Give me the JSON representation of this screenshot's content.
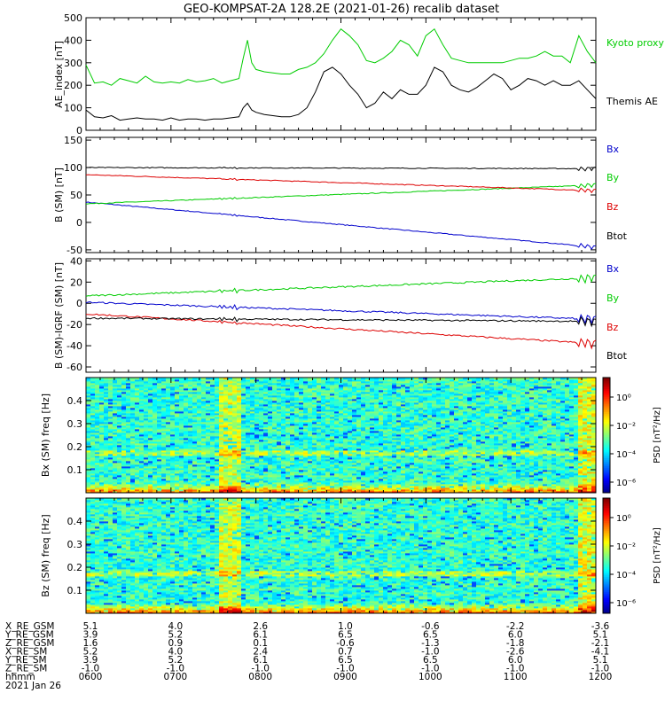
{
  "title": "GEO-KOMPSAT-2A 128.2E (2021-01-26) recalib dataset",
  "colors": {
    "black": "#000000",
    "green": "#00dd00",
    "red": "#dd0000",
    "blue": "#0000cc"
  },
  "chart_data": [
    {
      "type": "line",
      "ylabel": "AE_index [nT]",
      "ylim": [
        0,
        500
      ],
      "yticks": [
        "0",
        "100",
        "200",
        "300",
        "400",
        "500"
      ],
      "x_hours": [
        6,
        6.1,
        6.2,
        6.3,
        6.4,
        6.5,
        6.6,
        6.7,
        6.8,
        6.9,
        7,
        7.1,
        7.2,
        7.3,
        7.4,
        7.5,
        7.6,
        7.7,
        7.8,
        7.85,
        7.9,
        7.95,
        8,
        8.1,
        8.2,
        8.3,
        8.4,
        8.5,
        8.6,
        8.7,
        8.8,
        8.9,
        9,
        9.1,
        9.2,
        9.3,
        9.4,
        9.5,
        9.6,
        9.7,
        9.8,
        9.9,
        10,
        10.1,
        10.2,
        10.3,
        10.4,
        10.5,
        10.6,
        10.7,
        10.8,
        10.9,
        11,
        11.1,
        11.2,
        11.3,
        11.4,
        11.5,
        11.6,
        11.7,
        11.8,
        11.9,
        12
      ],
      "series": [
        {
          "name": "Kyoto proxy AE",
          "color": "#00cc00",
          "values": [
            290,
            210,
            215,
            200,
            230,
            220,
            210,
            240,
            215,
            210,
            215,
            210,
            225,
            215,
            220,
            230,
            210,
            220,
            230,
            320,
            400,
            300,
            270,
            260,
            255,
            250,
            250,
            270,
            280,
            300,
            340,
            400,
            450,
            420,
            380,
            310,
            300,
            320,
            350,
            400,
            380,
            330,
            420,
            450,
            380,
            320,
            310,
            300,
            300,
            300,
            300,
            300,
            310,
            320,
            320,
            330,
            350,
            330,
            330,
            300,
            420,
            350,
            300
          ]
        },
        {
          "name": "Themis AE",
          "color": "#000000",
          "values": [
            90,
            60,
            55,
            65,
            45,
            50,
            55,
            50,
            50,
            45,
            55,
            45,
            50,
            50,
            45,
            50,
            50,
            55,
            60,
            100,
            120,
            90,
            80,
            70,
            65,
            60,
            60,
            70,
            100,
            170,
            260,
            280,
            250,
            200,
            160,
            100,
            120,
            170,
            140,
            180,
            160,
            160,
            200,
            280,
            260,
            200,
            180,
            170,
            190,
            220,
            250,
            230,
            180,
            200,
            230,
            220,
            200,
            220,
            200,
            200,
            220,
            180,
            140
          ]
        }
      ]
    },
    {
      "type": "line",
      "ylabel": "B (SM) [nT]",
      "ylim": [
        -55,
        155
      ],
      "yticks": [
        "-50",
        "0",
        "50",
        "100",
        "150"
      ],
      "series": [
        {
          "name": "Bx",
          "color": "#0000cc",
          "start": 37,
          "end": -45
        },
        {
          "name": "By",
          "color": "#00cc00",
          "start": 34,
          "end": 68
        },
        {
          "name": "Bz",
          "color": "#dd0000",
          "start": 87,
          "end": 58
        },
        {
          "name": "Btot",
          "color": "#000000",
          "start": 100,
          "end": 98
        }
      ]
    },
    {
      "type": "line",
      "ylabel": "B (SM)-IGRF (SM) [nT]",
      "ylim": [
        -65,
        42
      ],
      "yticks": [
        "-60",
        "-40",
        "-20",
        "0",
        "20",
        "40"
      ],
      "series": [
        {
          "name": "Bx",
          "color": "#0000cc",
          "start": 1,
          "end": -15
        },
        {
          "name": "By",
          "color": "#00cc00",
          "start": 7,
          "end": 24
        },
        {
          "name": "Bz",
          "color": "#dd0000",
          "start": -10,
          "end": -38
        },
        {
          "name": "Btot",
          "color": "#000000",
          "start": -14,
          "end": -17
        }
      ]
    },
    {
      "type": "heatmap",
      "ylabel": "Bx (SM) freq [Hz]",
      "ylim": [
        0,
        0.5
      ],
      "yticks": [
        "0.1",
        "0.2",
        "0.3",
        "0.4"
      ],
      "colorbar": {
        "label": "PSD [nT²/Hz]",
        "ticks": [
          "10⁰",
          "10⁻²",
          "10⁻⁴",
          "10⁻⁶"
        ]
      }
    },
    {
      "type": "heatmap",
      "ylabel": "Bz (SM) freq [Hz]",
      "ylim": [
        0,
        0.5
      ],
      "yticks": [
        "0.1",
        "0.2",
        "0.3",
        "0.4"
      ],
      "colorbar": {
        "label": "PSD [nT²/Hz]",
        "ticks": [
          "10⁰",
          "10⁻²",
          "10⁻⁴",
          "10⁻⁶"
        ]
      }
    }
  ],
  "legend": {
    "ae": [
      "Kyoto proxy AE",
      "Themis AE"
    ],
    "b": [
      "Bx",
      "By",
      "Bz",
      "Btot"
    ]
  },
  "ephemeris": {
    "labels": [
      "X_RE_GSM",
      "Y_RE_GSM",
      "Z_RE_GSM",
      "X_RE_SM",
      "Y_RE_SM",
      "Z_RE_SM",
      "hhmm"
    ],
    "columns": [
      [
        "5.1",
        "3.9",
        "1.6",
        "5.2",
        "3.9",
        "-1.0",
        "0600"
      ],
      [
        "4.0",
        "5.2",
        "0.9",
        "4.0",
        "5.2",
        "-1.0",
        "0700"
      ],
      [
        "2.6",
        "6.1",
        "0.1",
        "2.4",
        "6.1",
        "-1.0",
        "0800"
      ],
      [
        "1.0",
        "6.5",
        "-0.6",
        "0.7",
        "6.5",
        "-1.0",
        "0900"
      ],
      [
        "-0.6",
        "6.5",
        "-1.3",
        "-1.0",
        "6.5",
        "-1.0",
        "1000"
      ],
      [
        "-2.2",
        "6.0",
        "-1.8",
        "-2.6",
        "6.0",
        "-1.0",
        "1100"
      ],
      [
        "-3.6",
        "5.1",
        "-2.1",
        "-4.1",
        "5.1",
        "-1.0",
        "1200"
      ]
    ],
    "date": "2021 Jan 26"
  }
}
